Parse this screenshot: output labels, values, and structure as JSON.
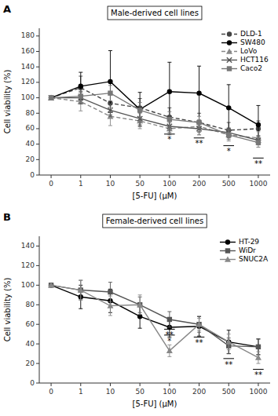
{
  "chart_data": [
    {
      "type": "line",
      "panel_label": "A",
      "title": "Male-derived cell lines",
      "x_label": "[5-FU] (μM)",
      "y_label": "Cell viability (%)",
      "categories": [
        "0",
        "1",
        "10",
        "50",
        "100",
        "200",
        "500",
        "1000"
      ],
      "ylim": [
        0,
        190
      ],
      "yticks": [
        0,
        20,
        40,
        60,
        80,
        100,
        120,
        140,
        160,
        180
      ],
      "grid": false,
      "legend": "upper right",
      "series": [
        {
          "name": "DLD-1",
          "color": "#444444",
          "line_style": "dashed",
          "marker": "circle",
          "values": [
            100,
            113,
            93,
            87,
            75,
            68,
            58,
            60
          ],
          "errors": [
            0,
            15,
            15,
            12,
            12,
            12,
            10,
            10
          ]
        },
        {
          "name": "SW480",
          "color": "#000000",
          "line_style": "solid",
          "marker": "circle",
          "values": [
            100,
            115,
            121,
            85,
            108,
            106,
            87,
            65
          ],
          "errors": [
            0,
            18,
            40,
            22,
            38,
            35,
            30,
            25
          ]
        },
        {
          "name": "LoVo",
          "color": "#888888",
          "line_style": "dashed",
          "marker": "triangle",
          "values": [
            100,
            95,
            76,
            70,
            60,
            63,
            52,
            48
          ],
          "errors": [
            0,
            12,
            12,
            10,
            8,
            8,
            8,
            8
          ]
        },
        {
          "name": "HCT116",
          "color": "#555555",
          "line_style": "solid",
          "marker": "x",
          "values": [
            100,
            100,
            84,
            73,
            63,
            60,
            55,
            45
          ],
          "errors": [
            0,
            8,
            8,
            8,
            8,
            8,
            6,
            6
          ]
        },
        {
          "name": "Caco2",
          "color": "#777777",
          "line_style": "solid",
          "marker": "square",
          "values": [
            100,
            102,
            106,
            84,
            72,
            68,
            52,
            42
          ],
          "errors": [
            0,
            8,
            10,
            10,
            10,
            8,
            6,
            6
          ]
        }
      ],
      "annotations": [
        {
          "category": "100",
          "y": 53,
          "text_y": 50,
          "text": "*"
        },
        {
          "category": "200",
          "y": 48,
          "text_y": 45,
          "text": "**"
        },
        {
          "category": "500",
          "y": 38,
          "text_y": 35,
          "text": "*"
        },
        {
          "category": "1000",
          "y": 22,
          "text_y": 19,
          "text": "**"
        }
      ]
    },
    {
      "type": "line",
      "panel_label": "B",
      "title": "Female-derived cell lines",
      "x_label": "[5-FU] (μM)",
      "y_label": "Cell viability (%)",
      "categories": [
        "0",
        "1",
        "10",
        "50",
        "100",
        "200",
        "500",
        "1000"
      ],
      "ylim": [
        0,
        150
      ],
      "yticks": [
        0,
        20,
        40,
        60,
        80,
        100,
        120,
        140
      ],
      "grid": false,
      "legend": "upper right",
      "series": [
        {
          "name": "HT-29",
          "color": "#000000",
          "line_style": "solid",
          "marker": "circle",
          "values": [
            100,
            88,
            84,
            68,
            57,
            58,
            42,
            37
          ],
          "errors": [
            0,
            12,
            12,
            12,
            10,
            10,
            12,
            8
          ]
        },
        {
          "name": "WiDr",
          "color": "#555555",
          "line_style": "solid",
          "marker": "square",
          "values": [
            100,
            95,
            93,
            80,
            65,
            60,
            38,
            37
          ],
          "errors": [
            0,
            10,
            10,
            8,
            8,
            8,
            8,
            8
          ]
        },
        {
          "name": "SNUC2A",
          "color": "#888888",
          "line_style": "solid",
          "marker": "triangle",
          "values": [
            100,
            95,
            79,
            80,
            33,
            60,
            42,
            26
          ],
          "errors": [
            0,
            10,
            10,
            10,
            6,
            6,
            8,
            6
          ]
        }
      ],
      "annotations": [
        {
          "category": "100",
          "y": 49,
          "text_y": 46,
          "text": "*"
        },
        {
          "category": "100",
          "y": 55,
          "text_y": 52,
          "text": "**"
        },
        {
          "category": "200",
          "y": 47,
          "text_y": 44,
          "text": "**"
        },
        {
          "category": "500",
          "y": 25,
          "text_y": 22,
          "text": "**"
        },
        {
          "category": "1000",
          "y": 14,
          "text_y": 11,
          "text": "**"
        }
      ]
    }
  ]
}
